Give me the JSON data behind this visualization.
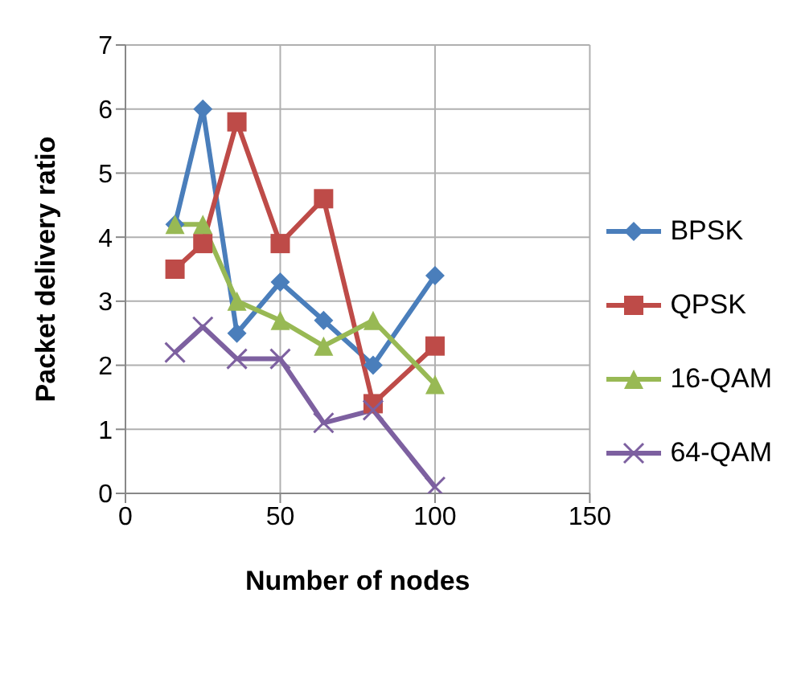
{
  "chart_data": {
    "type": "line",
    "xlabel": "Number of nodes",
    "ylabel": "Packet delivery ratio",
    "x": [
      16,
      25,
      36,
      50,
      64,
      80,
      100
    ],
    "series": [
      {
        "name": "BPSK",
        "color": "#4a7ebb",
        "values": [
          4.2,
          6.0,
          2.5,
          3.3,
          2.7,
          2.0,
          3.4
        ],
        "marker": "diamond"
      },
      {
        "name": "QPSK",
        "color": "#be4b48",
        "values": [
          3.5,
          3.9,
          5.8,
          3.9,
          4.6,
          1.4,
          2.3
        ],
        "marker": "square"
      },
      {
        "name": "16-QAM",
        "color": "#98b954",
        "values": [
          4.2,
          4.2,
          3.0,
          2.7,
          2.3,
          2.7,
          1.7
        ],
        "marker": "triangle"
      },
      {
        "name": "64-QAM",
        "color": "#7d60a0",
        "values": [
          2.2,
          2.6,
          2.1,
          2.1,
          1.1,
          1.3,
          0.1
        ],
        "marker": "cross"
      }
    ],
    "xlim": [
      0,
      150
    ],
    "xticks": [
      0,
      50,
      100,
      150
    ],
    "ylim": [
      0,
      7
    ],
    "yticks": [
      0,
      1,
      2,
      3,
      4,
      5,
      6,
      7
    ],
    "grid": true,
    "legend": "right"
  }
}
